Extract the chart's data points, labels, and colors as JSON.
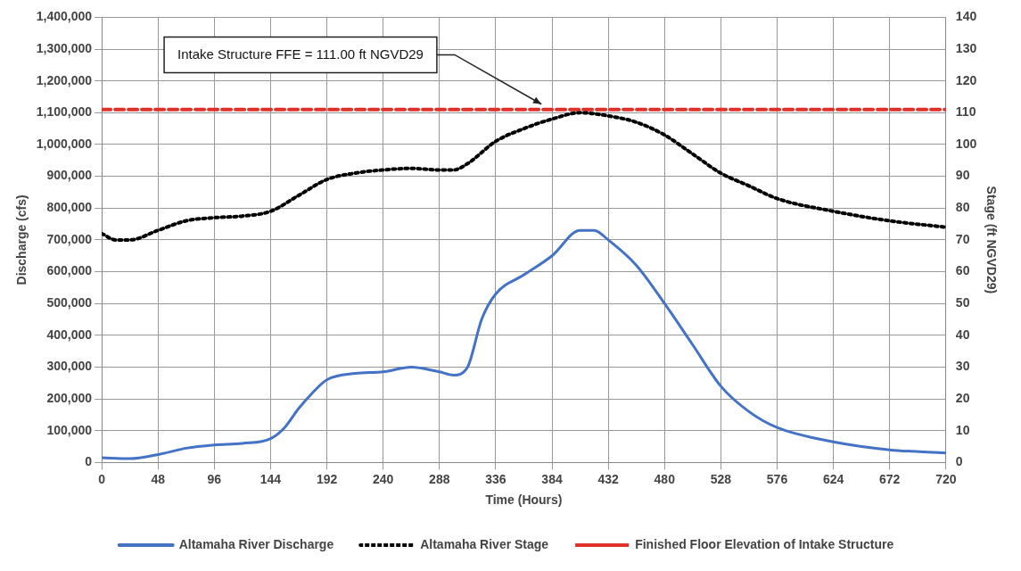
{
  "chart_data": {
    "type": "line",
    "xlabel": "Time (Hours)",
    "ylabel": "Discharge (cfs)",
    "y2label": "Stage (ft NGVD29)",
    "xlim": [
      0,
      720
    ],
    "xticks": [
      0,
      48,
      96,
      144,
      192,
      240,
      288,
      336,
      384,
      432,
      480,
      528,
      576,
      624,
      672,
      720
    ],
    "ylim": [
      0,
      1400000
    ],
    "yticks": [
      0,
      {
        "value": 100000,
        "label": "100,000"
      },
      {
        "value": 200000,
        "label": "200,000"
      },
      {
        "value": 300000,
        "label": "300,000"
      },
      {
        "value": 400000,
        "label": "400,000"
      },
      {
        "value": 500000,
        "label": "500,000"
      },
      {
        "value": 600000,
        "label": "600,000"
      },
      {
        "value": 700000,
        "label": "700,000"
      },
      {
        "value": 800000,
        "label": "800,000"
      },
      {
        "value": 900000,
        "label": "900,000"
      },
      {
        "value": 1000000,
        "label": "1,000,000"
      },
      {
        "value": 1100000,
        "label": "1,100,000"
      },
      {
        "value": 1200000,
        "label": "1,200,000"
      },
      {
        "value": 1300000,
        "label": "1,300,000"
      },
      {
        "value": 1400000,
        "label": "1,400,000"
      }
    ],
    "y2lim": [
      0,
      140
    ],
    "y2ticks": [
      0,
      10,
      20,
      30,
      40,
      50,
      60,
      70,
      80,
      90,
      100,
      110,
      120,
      130,
      140
    ],
    "grid": true,
    "legend": "bottom",
    "marker": "none",
    "series": [
      {
        "name": "Altamaha River Discharge",
        "color": "#4472c4",
        "line_style": "solid",
        "x": [
          0,
          24,
          48,
          72,
          96,
          120,
          144,
          156,
          168,
          180,
          192,
          216,
          240,
          264,
          288,
          300,
          312,
          324,
          336,
          360,
          384,
          408,
          420,
          432,
          456,
          480,
          504,
          528,
          552,
          576,
          624,
          672,
          720
        ],
        "values": [
          15000,
          12000,
          25000,
          45000,
          55000,
          60000,
          75000,
          110000,
          170000,
          220000,
          260000,
          280000,
          285000,
          300000,
          285000,
          275000,
          300000,
          450000,
          530000,
          590000,
          650000,
          730000,
          730000,
          700000,
          620000,
          500000,
          370000,
          240000,
          160000,
          110000,
          65000,
          40000,
          30000
        ]
      },
      {
        "name": "Altamaha River Stage",
        "color": "#000000",
        "line_style": "dotted",
        "axis": "y2",
        "x": [
          0,
          12,
          24,
          48,
          72,
          96,
          120,
          144,
          168,
          192,
          216,
          240,
          264,
          288,
          300,
          312,
          336,
          360,
          384,
          408,
          432,
          456,
          480,
          504,
          528,
          552,
          576,
          624,
          672,
          720
        ],
        "values": [
          72,
          70,
          70,
          73,
          76,
          77,
          77.5,
          79,
          84,
          89,
          91,
          92,
          92.5,
          92,
          92,
          94,
          101,
          105,
          108,
          110,
          109,
          107,
          103,
          97,
          91,
          87,
          83,
          79,
          76,
          74
        ]
      },
      {
        "name": "Finished Floor Elevation of Intake Structure",
        "color": "#e0302a",
        "line_style": "dashed",
        "axis": "y2",
        "x": [
          0,
          720
        ],
        "values": [
          111,
          111
        ]
      }
    ],
    "annotations": [
      "Intake Structure FFE = 111.00 ft NGVD29"
    ]
  }
}
